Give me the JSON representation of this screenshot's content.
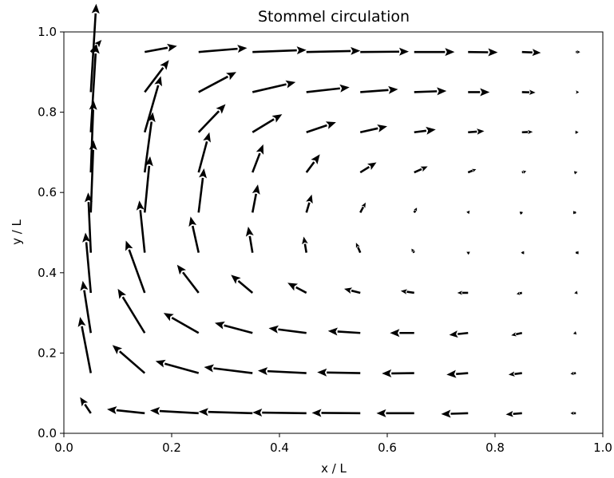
{
  "chart_data": {
    "type": "quiver",
    "title": "Stommel circulation",
    "xlabel": "x / L",
    "ylabel": "y / L",
    "xlim": [
      0.0,
      1.0
    ],
    "ylim": [
      0.0,
      1.0
    ],
    "xticks": [
      "0.0",
      "0.2",
      "0.4",
      "0.6",
      "0.8",
      "1.0"
    ],
    "yticks": [
      "0.0",
      "0.2",
      "0.4",
      "0.6",
      "0.8",
      "1.0"
    ],
    "grid": false,
    "legend": "none",
    "arrow_color": "#000000",
    "x": [
      0.05,
      0.15,
      0.25,
      0.35,
      0.45,
      0.55,
      0.65,
      0.75,
      0.85,
      0.95
    ],
    "y": [
      0.05,
      0.15,
      0.25,
      0.35,
      0.45,
      0.55,
      0.65,
      0.75,
      0.85,
      0.95
    ],
    "u": [
      [
        -0.02,
        -0.07,
        -0.09,
        -0.1,
        -0.1,
        -0.09,
        -0.07,
        -0.05,
        -0.03,
        -0.01
      ],
      [
        -0.02,
        -0.06,
        -0.08,
        -0.09,
        -0.09,
        -0.08,
        -0.06,
        -0.04,
        -0.025,
        -0.01
      ],
      [
        -0.015,
        -0.05,
        -0.065,
        -0.07,
        -0.07,
        -0.06,
        -0.045,
        -0.035,
        -0.02,
        -0.005
      ],
      [
        -0.01,
        -0.035,
        -0.04,
        -0.04,
        -0.035,
        -0.03,
        -0.025,
        -0.02,
        -0.01,
        -0.003
      ],
      [
        -0.005,
        -0.01,
        -0.015,
        -0.008,
        -0.005,
        -0.008,
        -0.005,
        -0.003,
        -0.002,
        -0.001
      ],
      [
        0.005,
        0.01,
        0.01,
        0.01,
        0.01,
        0.01,
        0.005,
        0.003,
        0.002,
        0.001
      ],
      [
        0.005,
        0.015,
        0.02,
        0.02,
        0.025,
        0.03,
        0.025,
        0.015,
        0.008,
        0.003
      ],
      [
        0.01,
        0.03,
        0.05,
        0.055,
        0.055,
        0.05,
        0.04,
        0.03,
        0.02,
        0.005
      ],
      [
        0.01,
        0.045,
        0.07,
        0.08,
        0.08,
        0.07,
        0.06,
        0.04,
        0.025,
        0.006
      ],
      [
        0.02,
        0.06,
        0.09,
        0.1,
        0.1,
        0.09,
        0.075,
        0.055,
        0.035,
        0.008
      ]
    ],
    "v": [
      [
        0.04,
        0.01,
        0.007,
        0.004,
        0.002,
        0.001,
        0.0,
        -0.002,
        -0.003,
        0.0
      ],
      [
        0.14,
        0.07,
        0.03,
        0.015,
        0.006,
        0.002,
        -0.001,
        -0.004,
        -0.004,
        -0.002
      ],
      [
        0.13,
        0.11,
        0.05,
        0.025,
        0.012,
        0.005,
        0.0,
        -0.005,
        -0.006,
        -0.002
      ],
      [
        0.15,
        0.13,
        0.07,
        0.045,
        0.025,
        0.01,
        0.005,
        0.0,
        -0.003,
        -0.001
      ],
      [
        0.15,
        0.13,
        0.09,
        0.065,
        0.04,
        0.025,
        0.01,
        0.002,
        0.0,
        0.0
      ],
      [
        0.18,
        0.14,
        0.11,
        0.07,
        0.045,
        0.025,
        0.012,
        0.005,
        0.001,
        0.0
      ],
      [
        0.18,
        0.15,
        0.1,
        0.07,
        0.045,
        0.025,
        0.015,
        0.008,
        0.003,
        0.001
      ],
      [
        0.22,
        0.14,
        0.07,
        0.045,
        0.025,
        0.015,
        0.007,
        0.003,
        0.001,
        0.0
      ],
      [
        0.22,
        0.08,
        0.05,
        0.025,
        0.012,
        0.007,
        0.003,
        0.0,
        -0.001,
        0.0
      ],
      [
        0.03,
        0.015,
        0.01,
        0.005,
        0.003,
        0.001,
        0.0,
        -0.001,
        -0.002,
        0.0
      ]
    ]
  }
}
